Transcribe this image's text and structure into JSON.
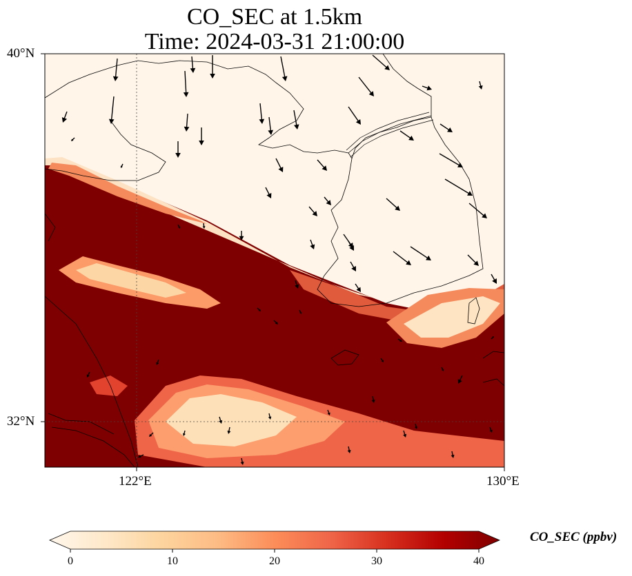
{
  "title": {
    "line1": "CO_SEC at 1.5km",
    "line2": "Time: 2024-03-31 21:00:00"
  },
  "map": {
    "variable": "CO_SEC",
    "units": "ppbv",
    "level": "1.5km",
    "extent": {
      "lon": [
        120.4,
        130.0
      ],
      "lat": [
        31.0,
        40.0
      ]
    },
    "lat_labels": [
      "40°N",
      "32°N"
    ],
    "lon_labels": [
      "122°E",
      "130°E"
    ],
    "gridlines": {
      "lons": [
        122
      ],
      "lats": [
        32
      ],
      "style": "dotted"
    },
    "colormap": "OrRd",
    "features": [
      "coastlines",
      "borders",
      "wind-vectors"
    ]
  },
  "colorbar": {
    "label": "CO_SEC (ppbv)",
    "ticks": [
      "0",
      "10",
      "20",
      "30",
      "40"
    ],
    "range": [
      0,
      40
    ],
    "extend": "both",
    "colors": [
      "#fff7ec",
      "#fee8c8",
      "#fdd49e",
      "#fdbb84",
      "#fc8d59",
      "#ef6548",
      "#d7301f",
      "#b30000",
      "#7f0000"
    ]
  }
}
